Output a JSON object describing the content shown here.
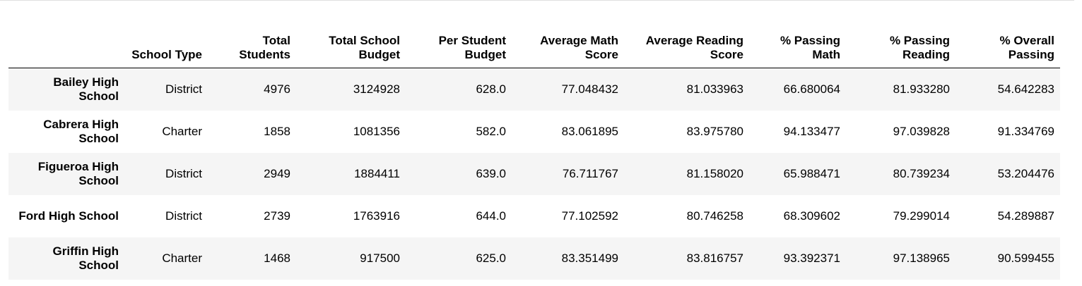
{
  "table": {
    "columns": [
      "",
      "School Type",
      "Total Students",
      "Total School Budget",
      "Per Student Budget",
      "Average Math Score",
      "Average Reading Score",
      "% Passing Math",
      "% Passing Reading",
      "% Overall Passing"
    ],
    "rows": [
      {
        "school": "Bailey High School",
        "type": "District",
        "students": "4976",
        "budget": "3124928",
        "per_student": "628.0",
        "avg_math": "77.048432",
        "avg_reading": "81.033963",
        "pct_math": "66.680064",
        "pct_reading": "81.933280",
        "pct_overall": "54.642283"
      },
      {
        "school": "Cabrera High School",
        "type": "Charter",
        "students": "1858",
        "budget": "1081356",
        "per_student": "582.0",
        "avg_math": "83.061895",
        "avg_reading": "83.975780",
        "pct_math": "94.133477",
        "pct_reading": "97.039828",
        "pct_overall": "91.334769"
      },
      {
        "school": "Figueroa High School",
        "type": "District",
        "students": "2949",
        "budget": "1884411",
        "per_student": "639.0",
        "avg_math": "76.711767",
        "avg_reading": "81.158020",
        "pct_math": "65.988471",
        "pct_reading": "80.739234",
        "pct_overall": "53.204476"
      },
      {
        "school": "Ford High School",
        "type": "District",
        "students": "2739",
        "budget": "1763916",
        "per_student": "644.0",
        "avg_math": "77.102592",
        "avg_reading": "80.746258",
        "pct_math": "68.309602",
        "pct_reading": "79.299014",
        "pct_overall": "54.289887"
      },
      {
        "school": "Griffin High School",
        "type": "Charter",
        "students": "1468",
        "budget": "917500",
        "per_student": "625.0",
        "avg_math": "83.351499",
        "avg_reading": "83.816757",
        "pct_math": "93.392371",
        "pct_reading": "97.138965",
        "pct_overall": "90.599455"
      }
    ]
  }
}
